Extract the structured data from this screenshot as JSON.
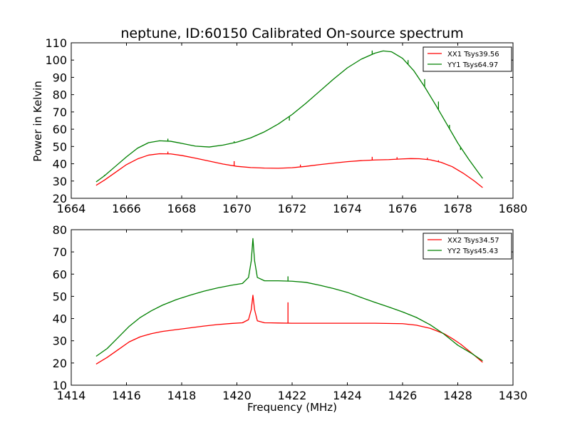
{
  "title": "neptune, ID:60150 Calibrated On-source spectrum",
  "ylabel": "Power in Kelvin",
  "xlabel": "Frequency (MHz)",
  "chart_data": [
    {
      "type": "line",
      "xlim": [
        1664,
        1680
      ],
      "ylim": [
        20,
        110
      ],
      "xticks": [
        "1664",
        "1666",
        "1668",
        "1670",
        "1672",
        "1674",
        "1676",
        "1678",
        "1680"
      ],
      "yticks": [
        "20",
        "30",
        "40",
        "50",
        "60",
        "70",
        "80",
        "90",
        "100",
        "110"
      ],
      "legend_position": "top-right",
      "series": [
        {
          "name": "XX1 Tsys39.56",
          "color": "#ff0000",
          "x": [
            1664.9,
            1665.2,
            1665.6,
            1666.0,
            1666.4,
            1666.8,
            1667.2,
            1667.6,
            1668.0,
            1668.5,
            1669.0,
            1669.5,
            1670.0,
            1670.5,
            1671.0,
            1671.5,
            1672.0,
            1672.5,
            1673.0,
            1673.5,
            1674.0,
            1674.5,
            1675.0,
            1675.5,
            1676.0,
            1676.3,
            1676.6,
            1677.0,
            1677.4,
            1677.8,
            1678.2,
            1678.6,
            1678.9
          ],
          "y": [
            27.5,
            30.5,
            35,
            39.5,
            42.8,
            45,
            45.8,
            45.7,
            44.8,
            43.2,
            41.5,
            39.8,
            38.5,
            37.8,
            37.5,
            37.4,
            37.7,
            38.5,
            39.5,
            40.4,
            41.2,
            41.8,
            42.2,
            42.4,
            42.8,
            43.0,
            42.9,
            42.3,
            40.8,
            38.3,
            34.5,
            30,
            26.2
          ],
          "spikes": [
            [
              1667.5,
              47
            ],
            [
              1669.9,
              41.5
            ],
            [
              1672.3,
              39.5
            ],
            [
              1674.9,
              44
            ],
            [
              1675.8,
              43.8
            ],
            [
              1676.9,
              43.5
            ],
            [
              1677.3,
              42
            ]
          ]
        },
        {
          "name": "YY1 Tsys64.97",
          "color": "#008000",
          "x": [
            1664.9,
            1665.2,
            1665.6,
            1666.0,
            1666.4,
            1666.8,
            1667.2,
            1667.6,
            1668.0,
            1668.5,
            1669.0,
            1669.5,
            1670.0,
            1670.5,
            1671.0,
            1671.5,
            1672.0,
            1672.5,
            1673.0,
            1673.5,
            1674.0,
            1674.5,
            1675.0,
            1675.3,
            1675.6,
            1676.0,
            1676.4,
            1676.8,
            1677.2,
            1677.6,
            1678.0,
            1678.4,
            1678.9
          ],
          "y": [
            29.5,
            33,
            38.5,
            44,
            49,
            52.2,
            53.3,
            53,
            51.8,
            50.2,
            49.7,
            50.8,
            52.5,
            55,
            58.5,
            63,
            68.5,
            75,
            82,
            89,
            95.5,
            100.5,
            104,
            105.3,
            104.8,
            101,
            94,
            84.5,
            74,
            63,
            52,
            42.5,
            31.5
          ],
          "spikes": [
            [
              1665.2,
              33.5
            ],
            [
              1667.5,
              54.5
            ],
            [
              1669.9,
              53
            ],
            [
              1671.9,
              65
            ],
            [
              1674.9,
              105.5
            ],
            [
              1676.2,
              100
            ],
            [
              1676.8,
              89
            ],
            [
              1677.3,
              76
            ],
            [
              1677.7,
              62.5
            ],
            [
              1678.1,
              48
            ]
          ]
        }
      ]
    },
    {
      "type": "line",
      "xlim": [
        1414,
        1430
      ],
      "ylim": [
        10,
        80
      ],
      "xticks": [
        "1414",
        "1416",
        "1418",
        "1420",
        "1422",
        "1424",
        "1426",
        "1428",
        "1430"
      ],
      "yticks": [
        "10",
        "20",
        "30",
        "40",
        "50",
        "60",
        "70",
        "80"
      ],
      "legend_position": "top-right",
      "series": [
        {
          "name": "XX2 Tsys34.57",
          "color": "#ff0000",
          "x": [
            1414.9,
            1415.3,
            1415.7,
            1416.1,
            1416.5,
            1416.9,
            1417.3,
            1417.8,
            1418.3,
            1418.8,
            1419.3,
            1419.8,
            1420.2,
            1420.42,
            1420.52,
            1420.58,
            1420.64,
            1420.74,
            1421.0,
            1421.5,
            1422.0,
            1423.0,
            1424.0,
            1425.0,
            1426.0,
            1426.5,
            1427.0,
            1427.5,
            1427.8,
            1428.1,
            1428.5,
            1428.9
          ],
          "y": [
            19.5,
            22.5,
            26,
            29.5,
            31.8,
            33.2,
            34.2,
            35,
            35.8,
            36.6,
            37.3,
            37.8,
            38.1,
            39.5,
            44,
            50.5,
            44,
            39,
            38.1,
            38.0,
            37.9,
            37.9,
            37.9,
            37.9,
            37.7,
            37.0,
            35.6,
            33.2,
            31,
            28.5,
            24.5,
            20.3
          ],
          "spikes": [
            [
              1421.85,
              47.3
            ]
          ]
        },
        {
          "name": "YY2 Tsys45.43",
          "color": "#008000",
          "x": [
            1414.9,
            1415.3,
            1415.7,
            1416.1,
            1416.5,
            1416.9,
            1417.3,
            1417.8,
            1418.3,
            1418.8,
            1419.3,
            1419.8,
            1420.2,
            1420.42,
            1420.52,
            1420.58,
            1420.64,
            1420.74,
            1421.0,
            1421.5,
            1422.0,
            1422.5,
            1423.0,
            1423.5,
            1424.0,
            1424.5,
            1425.0,
            1425.5,
            1426.0,
            1426.5,
            1427.0,
            1427.5,
            1428.0,
            1428.5,
            1428.9
          ],
          "y": [
            23,
            26.5,
            31.5,
            36.5,
            40.5,
            43.5,
            46,
            48.5,
            50.5,
            52.3,
            53.8,
            55,
            55.8,
            58.5,
            66,
            76,
            66,
            58.5,
            57,
            57,
            56.8,
            56.3,
            55,
            53.5,
            51.8,
            49.5,
            47.3,
            45.2,
            43,
            40.5,
            37.2,
            33,
            28,
            24.3,
            21
          ],
          "spikes": [
            [
              1421.85,
              59
            ]
          ]
        }
      ]
    }
  ]
}
